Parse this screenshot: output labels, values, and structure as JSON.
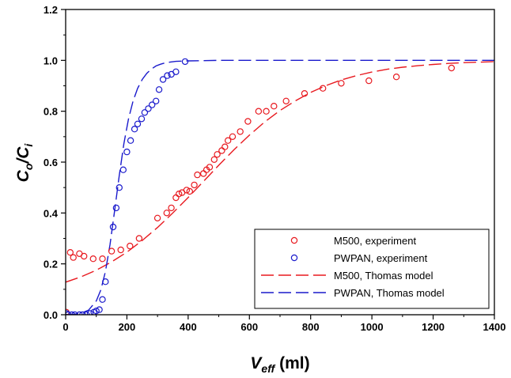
{
  "chart_data": {
    "type": "scatter",
    "xlabel": "V",
    "xlabel_sub": "eff",
    "xlabel_unit": " (ml)",
    "ylabel_main": "C",
    "ylabel_sub1": "o",
    "ylabel_slash": "/C",
    "ylabel_sub2": "i",
    "xlim": [
      0,
      1400
    ],
    "ylim": [
      0.0,
      1.2
    ],
    "x_ticks": [
      0,
      200,
      400,
      600,
      800,
      1000,
      1200,
      1400
    ],
    "y_ticks": [
      0.0,
      0.2,
      0.4,
      0.6,
      0.8,
      1.0,
      1.2
    ],
    "x_tick_labels": [
      "0",
      "200",
      "400",
      "600",
      "800",
      "1000",
      "1200",
      "1400"
    ],
    "y_tick_labels": [
      "0.0",
      "0.2",
      "0.4",
      "0.6",
      "0.8",
      "1.0",
      "1.2"
    ],
    "grid": false,
    "legend_position": "bottom-right",
    "colors": {
      "m500": "#e8191f",
      "pwpan": "#1a1acc"
    },
    "legend": [
      {
        "label": "M500, experiment",
        "kind": "marker",
        "color": "#e8191f"
      },
      {
        "label": "PWPAN, experiment",
        "kind": "marker",
        "color": "#1a1acc"
      },
      {
        "label": "M500, Thomas model",
        "kind": "dash",
        "color": "#e8191f"
      },
      {
        "label": "PWPAN, Thomas model",
        "kind": "dash",
        "color": "#1a1acc"
      }
    ],
    "series": [
      {
        "name": "M500, experiment",
        "kind": "scatter",
        "color": "#e8191f",
        "points": [
          [
            2,
            0.01
          ],
          [
            15,
            0.245
          ],
          [
            25,
            0.225
          ],
          [
            45,
            0.24
          ],
          [
            60,
            0.23
          ],
          [
            90,
            0.22
          ],
          [
            120,
            0.22
          ],
          [
            150,
            0.25
          ],
          [
            180,
            0.255
          ],
          [
            210,
            0.27
          ],
          [
            240,
            0.3
          ],
          [
            300,
            0.38
          ],
          [
            330,
            0.4
          ],
          [
            345,
            0.42
          ],
          [
            360,
            0.46
          ],
          [
            370,
            0.475
          ],
          [
            380,
            0.48
          ],
          [
            395,
            0.49
          ],
          [
            405,
            0.485
          ],
          [
            420,
            0.51
          ],
          [
            430,
            0.55
          ],
          [
            450,
            0.555
          ],
          [
            460,
            0.57
          ],
          [
            470,
            0.58
          ],
          [
            485,
            0.61
          ],
          [
            495,
            0.63
          ],
          [
            510,
            0.645
          ],
          [
            520,
            0.66
          ],
          [
            530,
            0.685
          ],
          [
            545,
            0.7
          ],
          [
            570,
            0.72
          ],
          [
            595,
            0.76
          ],
          [
            630,
            0.8
          ],
          [
            655,
            0.8
          ],
          [
            680,
            0.82
          ],
          [
            720,
            0.84
          ],
          [
            780,
            0.87
          ],
          [
            840,
            0.89
          ],
          [
            900,
            0.91
          ],
          [
            990,
            0.92
          ],
          [
            1080,
            0.935
          ],
          [
            1260,
            0.97
          ]
        ]
      },
      {
        "name": "PWPAN, experiment",
        "kind": "scatter",
        "color": "#1a1acc",
        "points": [
          [
            2,
            0.005
          ],
          [
            8,
            0.0
          ],
          [
            20,
            0.0
          ],
          [
            30,
            0.0
          ],
          [
            45,
            0.0
          ],
          [
            55,
            0.0
          ],
          [
            68,
            0.0
          ],
          [
            80,
            0.005
          ],
          [
            92,
            0.01
          ],
          [
            100,
            0.015
          ],
          [
            110,
            0.02
          ],
          [
            120,
            0.06
          ],
          [
            130,
            0.13
          ],
          [
            155,
            0.345
          ],
          [
            165,
            0.42
          ],
          [
            175,
            0.5
          ],
          [
            188,
            0.57
          ],
          [
            200,
            0.64
          ],
          [
            212,
            0.685
          ],
          [
            225,
            0.73
          ],
          [
            235,
            0.75
          ],
          [
            248,
            0.77
          ],
          [
            258,
            0.795
          ],
          [
            270,
            0.81
          ],
          [
            282,
            0.825
          ],
          [
            295,
            0.84
          ],
          [
            305,
            0.885
          ],
          [
            318,
            0.925
          ],
          [
            332,
            0.94
          ],
          [
            345,
            0.945
          ],
          [
            360,
            0.955
          ],
          [
            390,
            0.995
          ]
        ]
      },
      {
        "name": "M500, Thomas model",
        "kind": "line",
        "color": "#e8191f",
        "points": [
          [
            0,
            0.128
          ],
          [
            50,
            0.149
          ],
          [
            100,
            0.175
          ],
          [
            150,
            0.208
          ],
          [
            200,
            0.246
          ],
          [
            250,
            0.292
          ],
          [
            300,
            0.343
          ],
          [
            350,
            0.4
          ],
          [
            400,
            0.461
          ],
          [
            450,
            0.524
          ],
          [
            500,
            0.588
          ],
          [
            550,
            0.649
          ],
          [
            600,
            0.706
          ],
          [
            650,
            0.758
          ],
          [
            700,
            0.803
          ],
          [
            750,
            0.841
          ],
          [
            800,
            0.874
          ],
          [
            850,
            0.901
          ],
          [
            900,
            0.923
          ],
          [
            950,
            0.94
          ],
          [
            1000,
            0.954
          ],
          [
            1050,
            0.965
          ],
          [
            1100,
            0.973
          ],
          [
            1150,
            0.979
          ],
          [
            1200,
            0.984
          ],
          [
            1250,
            0.988
          ],
          [
            1300,
            0.991
          ],
          [
            1350,
            0.993
          ],
          [
            1400,
            0.995
          ]
        ]
      },
      {
        "name": "PWPAN, Thomas model",
        "kind": "line",
        "color": "#1a1acc",
        "points": [
          [
            0,
            0.001
          ],
          [
            25,
            0.002
          ],
          [
            50,
            0.006
          ],
          [
            75,
            0.018
          ],
          [
            100,
            0.054
          ],
          [
            115,
            0.098
          ],
          [
            130,
            0.17
          ],
          [
            145,
            0.276
          ],
          [
            160,
            0.409
          ],
          [
            175,
            0.548
          ],
          [
            190,
            0.672
          ],
          [
            205,
            0.769
          ],
          [
            220,
            0.84
          ],
          [
            235,
            0.89
          ],
          [
            250,
            0.925
          ],
          [
            265,
            0.949
          ],
          [
            280,
            0.966
          ],
          [
            295,
            0.978
          ],
          [
            310,
            0.985
          ],
          [
            325,
            0.99
          ],
          [
            340,
            0.993
          ],
          [
            360,
            0.996
          ],
          [
            400,
            0.998
          ],
          [
            450,
            0.999
          ],
          [
            500,
            1.0
          ],
          [
            600,
            1.0
          ],
          [
            800,
            1.0
          ],
          [
            1000,
            1.0
          ],
          [
            1200,
            1.0
          ],
          [
            1400,
            1.0
          ]
        ]
      }
    ]
  }
}
